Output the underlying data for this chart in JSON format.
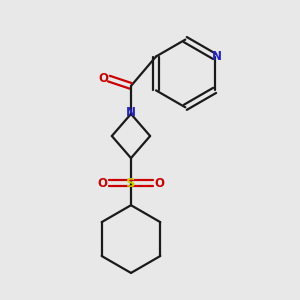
{
  "background_color": "#e8e8e8",
  "bond_color": "#1a1a1a",
  "nitrogen_color": "#2222cc",
  "oxygen_color": "#cc0000",
  "sulfur_color": "#cccc00",
  "figsize": [
    3.0,
    3.0
  ],
  "dpi": 100,
  "xlim": [
    -0.45,
    0.45
  ],
  "ylim": [
    -0.52,
    0.48
  ]
}
